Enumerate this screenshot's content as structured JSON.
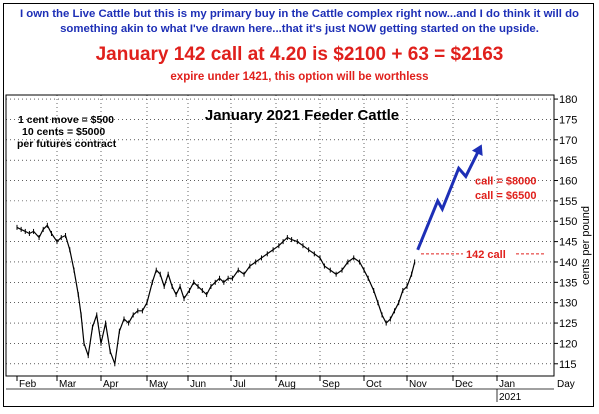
{
  "header": {
    "line1": "I own the Live Cattle  but this is my primary buy in the Cattle complex right now...and I do think it will do something akin to what I've drawn here...that it's just NOW getting started on the upside.",
    "line2": "January 142 call at 4.20 is $2100 + 63 = $2163",
    "line3": "expire under 1421, this option will be worthless"
  },
  "colors": {
    "header_blue": "#1d2fb6",
    "accent_red": "#e0201c",
    "price": "#000000",
    "projection": "#1d2fb6"
  },
  "chart_data": {
    "type": "line",
    "title": "January 2021 Feeder Cattle",
    "ylabel": "cents per pound",
    "ylim": [
      112,
      181
    ],
    "yticks": [
      115,
      120,
      125,
      130,
      135,
      140,
      145,
      150,
      155,
      160,
      165,
      170,
      175,
      180
    ],
    "x_months": [
      "Feb",
      "Mar",
      "Apr",
      "May",
      "Jun",
      "Jul",
      "Aug",
      "Sep",
      "Oct",
      "Nov",
      "Dec",
      "Jan"
    ],
    "x_year_label": "2021",
    "x_unit_label": "Day",
    "grid": true,
    "notes": [
      "1 cent move = $500",
      "10 cents = $5000",
      "per futures contract"
    ],
    "series": [
      {
        "values": [
          {
            "x": "Feb 1",
            "y": 148.5
          },
          {
            "x": "Feb 4",
            "y": 148
          },
          {
            "x": "Feb 7",
            "y": 147.5
          },
          {
            "x": "Feb 10",
            "y": 147
          },
          {
            "x": "Feb 13",
            "y": 147.5
          },
          {
            "x": "Feb 17",
            "y": 146
          },
          {
            "x": "Feb 20",
            "y": 148
          },
          {
            "x": "Feb 23",
            "y": 149
          },
          {
            "x": "Feb 26",
            "y": 147
          },
          {
            "x": "Mar 1",
            "y": 145
          },
          {
            "x": "Mar 4",
            "y": 146
          },
          {
            "x": "Mar 7",
            "y": 146.5
          },
          {
            "x": "Mar 10",
            "y": 143
          },
          {
            "x": "Mar 13",
            "y": 138
          },
          {
            "x": "Mar 16",
            "y": 132
          },
          {
            "x": "Mar 18",
            "y": 127
          },
          {
            "x": "Mar 20",
            "y": 120
          },
          {
            "x": "Mar 23",
            "y": 117
          },
          {
            "x": "Mar 26",
            "y": 124
          },
          {
            "x": "Mar 29",
            "y": 127
          },
          {
            "x": "Apr 1",
            "y": 120
          },
          {
            "x": "Apr 4",
            "y": 125
          },
          {
            "x": "Apr 7",
            "y": 118
          },
          {
            "x": "Apr 10",
            "y": 115
          },
          {
            "x": "Apr 13",
            "y": 123
          },
          {
            "x": "Apr 16",
            "y": 126
          },
          {
            "x": "Apr 19",
            "y": 125
          },
          {
            "x": "Apr 22",
            "y": 127
          },
          {
            "x": "Apr 25",
            "y": 128
          },
          {
            "x": "Apr 28",
            "y": 128
          },
          {
            "x": "May 1",
            "y": 130
          },
          {
            "x": "May 5",
            "y": 135
          },
          {
            "x": "May 8",
            "y": 138
          },
          {
            "x": "May 11",
            "y": 137
          },
          {
            "x": "May 14",
            "y": 134
          },
          {
            "x": "May 17",
            "y": 137
          },
          {
            "x": "May 20",
            "y": 134
          },
          {
            "x": "May 23",
            "y": 132
          },
          {
            "x": "May 26",
            "y": 134
          },
          {
            "x": "May 29",
            "y": 131
          },
          {
            "x": "Jun 2",
            "y": 133
          },
          {
            "x": "Jun 5",
            "y": 135
          },
          {
            "x": "Jun 8",
            "y": 134
          },
          {
            "x": "Jun 11",
            "y": 133
          },
          {
            "x": "Jun 14",
            "y": 132
          },
          {
            "x": "Jun 17",
            "y": 134
          },
          {
            "x": "Jun 20",
            "y": 135
          },
          {
            "x": "Jun 23",
            "y": 136
          },
          {
            "x": "Jun 26",
            "y": 135
          },
          {
            "x": "Jun 29",
            "y": 136
          },
          {
            "x": "Jul 2",
            "y": 136
          },
          {
            "x": "Jul 6",
            "y": 138
          },
          {
            "x": "Jul 10",
            "y": 137
          },
          {
            "x": "Jul 14",
            "y": 139
          },
          {
            "x": "Jul 18",
            "y": 140
          },
          {
            "x": "Jul 22",
            "y": 141
          },
          {
            "x": "Jul 26",
            "y": 142
          },
          {
            "x": "Jul 30",
            "y": 143
          },
          {
            "x": "Aug 3",
            "y": 144
          },
          {
            "x": "Aug 6",
            "y": 145
          },
          {
            "x": "Aug 9",
            "y": 146
          },
          {
            "x": "Aug 12",
            "y": 145.5
          },
          {
            "x": "Aug 16",
            "y": 145
          },
          {
            "x": "Aug 20",
            "y": 144
          },
          {
            "x": "Aug 24",
            "y": 143
          },
          {
            "x": "Aug 28",
            "y": 142
          },
          {
            "x": "Sep 1",
            "y": 141
          },
          {
            "x": "Sep 4",
            "y": 139
          },
          {
            "x": "Sep 8",
            "y": 138
          },
          {
            "x": "Sep 12",
            "y": 137
          },
          {
            "x": "Sep 16",
            "y": 138
          },
          {
            "x": "Sep 20",
            "y": 140
          },
          {
            "x": "Sep 24",
            "y": 141
          },
          {
            "x": "Sep 28",
            "y": 140
          },
          {
            "x": "Oct 1",
            "y": 138
          },
          {
            "x": "Oct 4",
            "y": 136
          },
          {
            "x": "Oct 8",
            "y": 133
          },
          {
            "x": "Oct 11",
            "y": 130
          },
          {
            "x": "Oct 14",
            "y": 127
          },
          {
            "x": "Oct 17",
            "y": 125
          },
          {
            "x": "Oct 20",
            "y": 126
          },
          {
            "x": "Oct 23",
            "y": 128
          },
          {
            "x": "Oct 26",
            "y": 130
          },
          {
            "x": "Oct 29",
            "y": 133
          },
          {
            "x": "Nov 1",
            "y": 134
          },
          {
            "x": "Nov 4",
            "y": 137
          },
          {
            "x": "Nov 6",
            "y": 140
          }
        ]
      }
    ],
    "projection": {
      "values": [
        {
          "x": "Nov 8",
          "y": 143
        },
        {
          "x": "Nov 21",
          "y": 155
        },
        {
          "x": "Nov 24",
          "y": 153
        },
        {
          "x": "Dec 5",
          "y": 163
        },
        {
          "x": "Dec 10",
          "y": 161
        },
        {
          "x": "Dec 20",
          "y": 168
        }
      ]
    },
    "reference_line": {
      "y": 142,
      "label": "142 call"
    },
    "annotations": [
      {
        "text": "call = $8000",
        "y": 160
      },
      {
        "text": "call = $6500",
        "y": 156.5
      }
    ]
  }
}
